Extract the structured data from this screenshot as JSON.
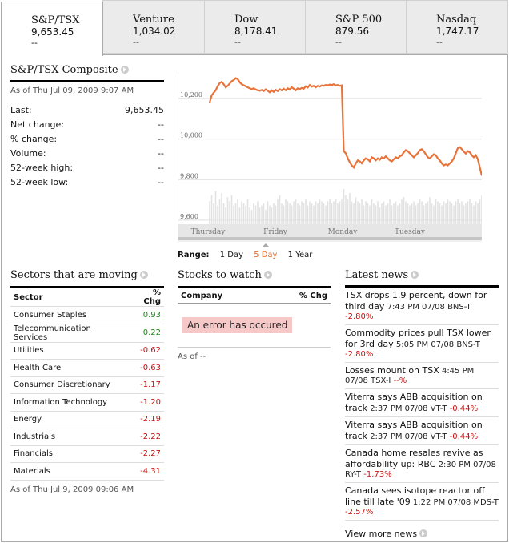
{
  "tabs": [
    {
      "name": "S&P/TSX",
      "value": "9,653.45",
      "change": "--"
    },
    {
      "name": "Venture",
      "value": "1,034.02",
      "change": "--"
    },
    {
      "name": "Dow",
      "value": "8,178.41",
      "change": "--"
    },
    {
      "name": "S&P 500",
      "value": "879.56",
      "change": "--"
    },
    {
      "name": "Nasdaq",
      "value": "1,747.17",
      "change": "--"
    }
  ],
  "composite": {
    "title": "S&P/TSX Composite",
    "asof": "As of Thu Jul 09, 2009 9:07 AM",
    "stats": [
      {
        "label": "Last:",
        "value": "9,653.45"
      },
      {
        "label": "Net change:",
        "value": "--"
      },
      {
        "label": "% change:",
        "value": "--"
      },
      {
        "label": "Volume:",
        "value": "--"
      },
      {
        "label": "52-week high:",
        "value": "--"
      },
      {
        "label": "52-week low:",
        "value": "--"
      }
    ]
  },
  "chart_data": {
    "type": "line",
    "ylim": [
      9580,
      10330
    ],
    "yticks": [
      9600,
      9800,
      10000,
      10200
    ],
    "ytick_labels": [
      "9,600",
      "9,800",
      "10,000",
      "10,200"
    ],
    "xlabels": [
      "Thursday",
      "Friday",
      "Monday",
      "Tuesday"
    ],
    "series": [
      {
        "values": [
          10180,
          10215,
          10228,
          10240,
          10260,
          10275,
          10282,
          10270,
          10255,
          10262,
          10273,
          10285,
          10290,
          10300,
          10295,
          10280,
          10270,
          10265,
          10260,
          10255,
          10250,
          10245,
          10250,
          10244,
          10240,
          10238,
          10242,
          10236,
          10245,
          10238,
          10230,
          10240,
          10232,
          10242,
          10236,
          10245,
          10240,
          10248,
          10240,
          10250,
          10244,
          10255,
          10248,
          10240,
          10250,
          10246,
          10252,
          10248,
          10260,
          10254,
          10266,
          10258,
          10262,
          10255,
          10262,
          10258,
          10264,
          10262,
          10266,
          10264,
          10268,
          10266,
          10270,
          10264,
          10266,
          10262,
          10264,
          9940,
          9930,
          9905,
          9885,
          9870,
          9860,
          9880,
          9895,
          9890,
          9880,
          9895,
          9905,
          9900,
          9890,
          9910,
          9905,
          9895,
          9905,
          9898,
          9910,
          9905,
          9915,
          9905,
          9895,
          9890,
          9900,
          9910,
          9905,
          9915,
          9920,
          9935,
          9945,
          9940,
          9930,
          9920,
          9910,
          9920,
          9930,
          9945,
          9950,
          9940,
          9925,
          9910,
          9905,
          9915,
          9925,
          9920,
          9905,
          9895,
          9880,
          9870,
          9875,
          9870,
          9880,
          9890,
          9905,
          9930,
          9955,
          9960,
          9950,
          9938,
          9928,
          9940,
          9935,
          9920,
          9910,
          9920,
          9900,
          9860,
          9820
        ]
      },
      {
        "name": "Volume",
        "values": [
          0.55,
          0.7,
          0.5,
          0.8,
          0.45,
          0.6,
          0.75,
          0.5,
          0.4,
          0.65,
          0.55,
          0.7,
          0.45,
          0.5,
          0.6,
          0.4,
          0.55,
          0.5,
          0.45,
          0.6,
          0.4,
          0.35,
          0.5,
          0.45,
          0.55,
          0.4,
          0.45,
          0.5,
          0.35,
          0.55,
          0.45,
          0.4,
          0.5,
          0.45,
          0.6,
          0.7,
          0.5,
          0.45,
          0.6,
          0.55,
          0.5,
          0.45,
          0.55,
          0.6,
          0.5,
          0.45,
          0.55,
          0.5,
          0.6,
          0.45,
          0.55,
          0.5,
          0.45,
          0.55,
          0.5,
          0.6,
          0.55,
          0.5,
          0.45,
          0.55,
          0.6,
          0.5,
          0.55,
          0.6,
          0.5,
          0.55,
          0.6,
          0.85,
          0.7,
          0.6,
          0.75,
          0.55,
          0.5,
          0.65,
          0.55,
          0.5,
          0.6,
          0.45,
          0.55,
          0.5,
          0.45,
          0.6,
          0.5,
          0.45,
          0.55,
          0.4,
          0.5,
          0.55,
          0.45,
          0.5,
          0.6,
          0.45,
          0.5,
          0.55,
          0.45,
          0.5,
          0.6,
          0.65,
          0.55,
          0.5,
          0.45,
          0.5,
          0.55,
          0.45,
          0.5,
          0.6,
          0.55,
          0.45,
          0.5,
          0.55,
          0.65,
          0.5,
          0.45,
          0.6,
          0.55,
          0.5,
          0.45,
          0.55,
          0.5,
          0.6,
          0.55,
          0.5,
          0.45,
          0.55,
          0.6,
          0.5,
          0.55,
          0.45,
          0.5,
          0.55,
          0.6,
          0.5,
          0.45,
          0.55,
          0.5,
          0.6,
          0.7
        ]
      }
    ]
  },
  "range": {
    "label": "Range:",
    "options": [
      "1 Day",
      "5 Day",
      "1 Year"
    ],
    "selected": "5 Day"
  },
  "sectors": {
    "title": "Sectors that are moving",
    "col_sector": "Sector",
    "col_chg": "% Chg",
    "rows": [
      {
        "name": "Consumer Staples",
        "chg": "0.93"
      },
      {
        "name": "Telecommunication Services",
        "chg": "0.22"
      },
      {
        "name": "Utilities",
        "chg": "-0.62"
      },
      {
        "name": "Health Care",
        "chg": "-0.63"
      },
      {
        "name": "Consumer Discretionary",
        "chg": "-1.17"
      },
      {
        "name": "Information Technology",
        "chg": "-1.20"
      },
      {
        "name": "Energy",
        "chg": "-2.19"
      },
      {
        "name": "Industrials",
        "chg": "-2.22"
      },
      {
        "name": "Financials",
        "chg": "-2.27"
      },
      {
        "name": "Materials",
        "chg": "-4.31"
      }
    ],
    "asof": "As of Thu Jul 9, 2009 09:06 AM"
  },
  "stocks": {
    "title": "Stocks to watch",
    "col_company": "Company",
    "col_chg": "% Chg",
    "error": "An error has occured",
    "asof": "As of --"
  },
  "news": {
    "title": "Latest news",
    "items": [
      {
        "title": "TSX drops 1.9 percent, down for third day",
        "time": "7:43 PM 07/08",
        "ticker": "BNS-T",
        "chg": "-2.80%"
      },
      {
        "title": "Commodity prices pull TSX lower for 3rd day",
        "time": "5:05 PM 07/08",
        "ticker": "BNS-T",
        "chg": "-2.80%"
      },
      {
        "title": "Losses mount on TSX",
        "time": "4:45 PM 07/08",
        "ticker": "TSX-I",
        "chg": "--%"
      },
      {
        "title": "Viterra says ABB acquisition on track",
        "time": "2:37 PM 07/08",
        "ticker": "VT-T",
        "chg": "-0.44%"
      },
      {
        "title": "Viterra says ABB acquisition on track",
        "time": "2:37 PM 07/08",
        "ticker": "VT-T",
        "chg": "-0.44%"
      },
      {
        "title": "Canada home resales revive as affordability up: RBC",
        "time": "2:30 PM 07/08",
        "ticker": "RY-T",
        "chg": "-1.73%"
      },
      {
        "title": "Canada sees isotope reactor off line till late '09",
        "time": "1:22 PM 07/08",
        "ticker": "MDS-T",
        "chg": "-2.57%"
      }
    ],
    "more": "View more news"
  },
  "colors": {
    "line": "#e8733a",
    "positive": "#1a8a1a",
    "negative": "#cc1111",
    "error_bg": "#f7c8c8"
  }
}
